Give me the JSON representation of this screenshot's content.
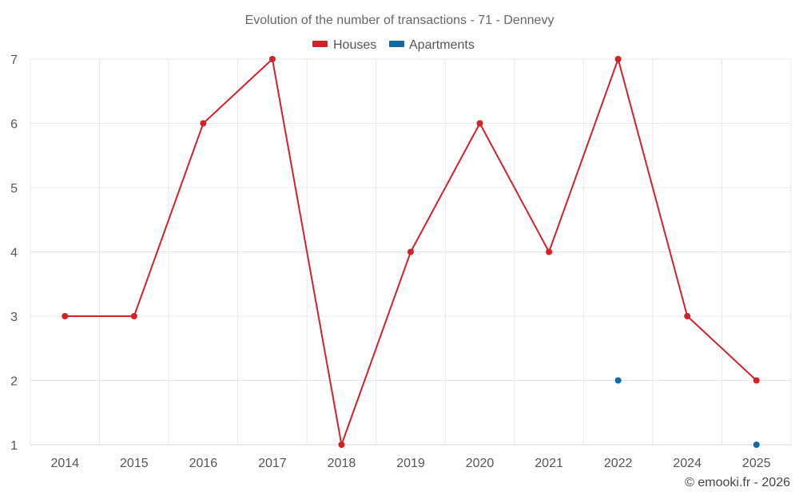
{
  "chart_data": {
    "type": "line",
    "title": "Evolution of the number of transactions - 71 - Dennevy",
    "categories": [
      "2014",
      "2015",
      "2016",
      "2017",
      "2018",
      "2019",
      "2020",
      "2021",
      "2022",
      "2024",
      "2025"
    ],
    "series": [
      {
        "name": "Houses",
        "color": "#d32227",
        "values": [
          3,
          3,
          6,
          7,
          1,
          4,
          6,
          4,
          7,
          3,
          2
        ]
      },
      {
        "name": "Apartments",
        "color": "#0e6ba8",
        "values": [
          null,
          null,
          null,
          null,
          null,
          null,
          null,
          null,
          2,
          null,
          1
        ]
      }
    ],
    "y_ticks": [
      "1",
      "2",
      "3",
      "4",
      "5",
      "6",
      "7"
    ],
    "ylim": [
      1,
      7
    ],
    "grid": true,
    "legend_position": "top-center",
    "xlabel": "",
    "ylabel": ""
  },
  "credit": "© emooki.fr - 2026"
}
